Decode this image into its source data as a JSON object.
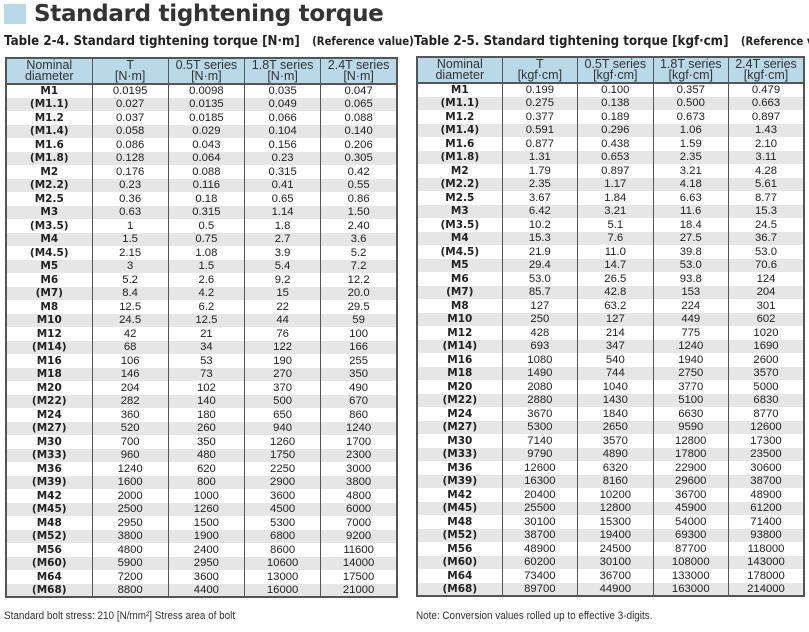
{
  "title": "Standard tightening torque",
  "left": {
    "caption": "Table 2-4. Standard tightening torque [N·m]",
    "ref": "(Reference value)",
    "headers": [
      [
        "Nominal diameter",
        ""
      ],
      [
        "T",
        "[N·m]"
      ],
      [
        "0.5T series",
        "[N·m]"
      ],
      [
        "1.8T series",
        "[N·m]"
      ],
      [
        "2.4T series",
        "[N·m]"
      ]
    ],
    "rows": [
      [
        "M1",
        "0.0195",
        "0.0098",
        "0.035",
        "0.047"
      ],
      [
        "(M1.1)",
        "0.027",
        "0.0135",
        "0.049",
        "0.065"
      ],
      [
        "M1.2",
        "0.037",
        "0.0185",
        "0.066",
        "0.088"
      ],
      [
        "(M1.4)",
        "0.058",
        "0.029",
        "0.104",
        "0.140"
      ],
      [
        "M1.6",
        "0.086",
        "0.043",
        "0.156",
        "0.206"
      ],
      [
        "(M1.8)",
        "0.128",
        "0.064",
        "0.23",
        "0.305"
      ],
      [
        "M2",
        "0.176",
        "0.088",
        "0.315",
        "0.42"
      ],
      [
        "(M2.2)",
        "0.23",
        "0.116",
        "0.41",
        "0.55"
      ],
      [
        "M2.5",
        "0.36",
        "0.18",
        "0.65",
        "0.86"
      ],
      [
        "M3",
        "0.63",
        "0.315",
        "1.14",
        "1.50"
      ],
      [
        "(M3.5)",
        "1",
        "0.5",
        "1.8",
        "2.40"
      ],
      [
        "M4",
        "1.5",
        "0.75",
        "2.7",
        "3.6"
      ],
      [
        "(M4.5)",
        "2.15",
        "1.08",
        "3.9",
        "5.2"
      ],
      [
        "M5",
        "3",
        "1.5",
        "5.4",
        "7.2"
      ],
      [
        "M6",
        "5.2",
        "2.6",
        "9.2",
        "12.2"
      ],
      [
        "(M7)",
        "8.4",
        "4.2",
        "15",
        "20.0"
      ],
      [
        "M8",
        "12.5",
        "6.2",
        "22",
        "29.5"
      ],
      [
        "M10",
        "24.5",
        "12.5",
        "44",
        "59"
      ],
      [
        "M12",
        "42",
        "21",
        "76",
        "100"
      ],
      [
        "(M14)",
        "68",
        "34",
        "122",
        "166"
      ],
      [
        "M16",
        "106",
        "53",
        "190",
        "255"
      ],
      [
        "M18",
        "146",
        "73",
        "270",
        "350"
      ],
      [
        "M20",
        "204",
        "102",
        "370",
        "490"
      ],
      [
        "(M22)",
        "282",
        "140",
        "500",
        "670"
      ],
      [
        "M24",
        "360",
        "180",
        "650",
        "860"
      ],
      [
        "(M27)",
        "520",
        "260",
        "940",
        "1240"
      ],
      [
        "M30",
        "700",
        "350",
        "1260",
        "1700"
      ],
      [
        "(M33)",
        "960",
        "480",
        "1750",
        "2300"
      ],
      [
        "M36",
        "1240",
        "620",
        "2250",
        "3000"
      ],
      [
        "(M39)",
        "1600",
        "800",
        "2900",
        "3800"
      ],
      [
        "M42",
        "2000",
        "1000",
        "3600",
        "4800"
      ],
      [
        "(M45)",
        "2500",
        "1260",
        "4500",
        "6000"
      ],
      [
        "M48",
        "2950",
        "1500",
        "5300",
        "7000"
      ],
      [
        "(M52)",
        "3800",
        "1900",
        "6800",
        "9200"
      ],
      [
        "M56",
        "4800",
        "2400",
        "8600",
        "11600"
      ],
      [
        "(M60)",
        "5900",
        "2950",
        "10600",
        "14000"
      ],
      [
        "M64",
        "7200",
        "3600",
        "13000",
        "17500"
      ],
      [
        "(M68)",
        "8800",
        "4400",
        "16000",
        "21000"
      ]
    ],
    "note": "Standard bolt stress: 210 [N/mm²] Stress area of bolt"
  },
  "right": {
    "caption": "Table 2-5. Standard tightening torque [kgf·cm]",
    "ref": "(Reference value)",
    "headers": [
      [
        "Nominal diameter",
        ""
      ],
      [
        "T",
        "[kgf·cm]"
      ],
      [
        "0.5T series",
        "[kgf·cm]"
      ],
      [
        "1.8T series",
        "[kgf·cm]"
      ],
      [
        "2.4T series",
        "[kgf·cm]"
      ]
    ],
    "rows": [
      [
        "M1",
        "0.199",
        "0.100",
        "0.357",
        "0.479"
      ],
      [
        "(M1.1)",
        "0.275",
        "0.138",
        "0.500",
        "0.663"
      ],
      [
        "M1.2",
        "0.377",
        "0.189",
        "0.673",
        "0.897"
      ],
      [
        "(M1.4)",
        "0.591",
        "0.296",
        "1.06",
        "1.43"
      ],
      [
        "M1.6",
        "0.877",
        "0.438",
        "1.59",
        "2.10"
      ],
      [
        "(M1.8)",
        "1.31",
        "0.653",
        "2.35",
        "3.11"
      ],
      [
        "M2",
        "1.79",
        "0.897",
        "3.21",
        "4.28"
      ],
      [
        "(M2.2)",
        "2.35",
        "1.17",
        "4.18",
        "5.61"
      ],
      [
        "M2.5",
        "3.67",
        "1.84",
        "6.63",
        "8.77"
      ],
      [
        "M3",
        "6.42",
        "3.21",
        "11.6",
        "15.3"
      ],
      [
        "(M3.5)",
        "10.2",
        "5.1",
        "18.4",
        "24.5"
      ],
      [
        "M4",
        "15.3",
        "7.6",
        "27.5",
        "36.7"
      ],
      [
        "(M4.5)",
        "21.9",
        "11.0",
        "39.8",
        "53.0"
      ],
      [
        "M5",
        "29.4",
        "14.7",
        "53.0",
        "70.6"
      ],
      [
        "M6",
        "53.0",
        "26.5",
        "93.8",
        "124"
      ],
      [
        "(M7)",
        "85.7",
        "42.8",
        "153",
        "204"
      ],
      [
        "M8",
        "127",
        "63.2",
        "224",
        "301"
      ],
      [
        "M10",
        "250",
        "127",
        "449",
        "602"
      ],
      [
        "M12",
        "428",
        "214",
        "775",
        "1020"
      ],
      [
        "(M14)",
        "693",
        "347",
        "1240",
        "1690"
      ],
      [
        "M16",
        "1080",
        "540",
        "1940",
        "2600"
      ],
      [
        "M18",
        "1490",
        "744",
        "2750",
        "3570"
      ],
      [
        "M20",
        "2080",
        "1040",
        "3770",
        "5000"
      ],
      [
        "(M22)",
        "2880",
        "1430",
        "5100",
        "6830"
      ],
      [
        "M24",
        "3670",
        "1840",
        "6630",
        "8770"
      ],
      [
        "(M27)",
        "5300",
        "2650",
        "9590",
        "12600"
      ],
      [
        "M30",
        "7140",
        "3570",
        "12800",
        "17300"
      ],
      [
        "(M33)",
        "9790",
        "4890",
        "17800",
        "23500"
      ],
      [
        "M36",
        "12600",
        "6320",
        "22900",
        "30600"
      ],
      [
        "(M39)",
        "16300",
        "8160",
        "29600",
        "38700"
      ],
      [
        "M42",
        "20400",
        "10200",
        "36700",
        "48900"
      ],
      [
        "(M45)",
        "25500",
        "12800",
        "45900",
        "61200"
      ],
      [
        "M48",
        "30100",
        "15300",
        "54000",
        "71400"
      ],
      [
        "(M52)",
        "38700",
        "19400",
        "69300",
        "93800"
      ],
      [
        "M56",
        "48900",
        "24500",
        "87700",
        "118000"
      ],
      [
        "(M60)",
        "60200",
        "30100",
        "108000",
        "143000"
      ],
      [
        "M64",
        "73400",
        "36700",
        "133000",
        "178000"
      ],
      [
        "(M68)",
        "89700",
        "44900",
        "163000",
        "214000"
      ]
    ],
    "note": "Note: Conversion values rolled up to effective 3-digits."
  },
  "colors": {
    "header_bg": "#b9d8e8",
    "stripe": "#e6e6e6",
    "title_square": "#b9d9ea"
  }
}
